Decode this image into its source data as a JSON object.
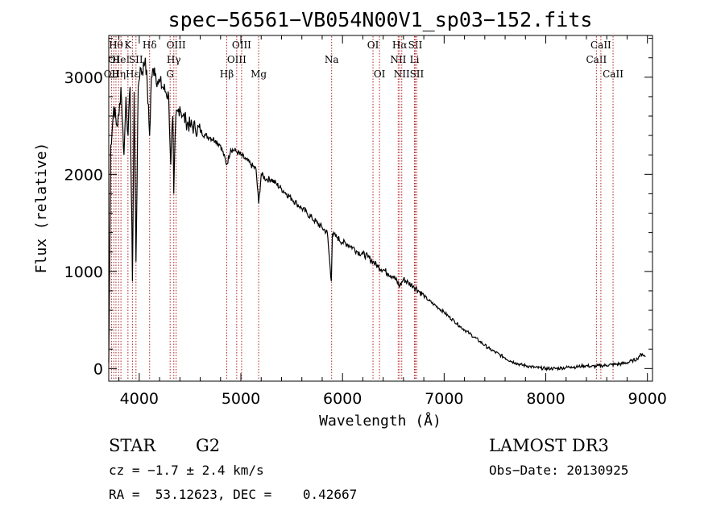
{
  "chart_data": {
    "type": "line",
    "title": "spec−56561−VB054N00V1_sp03−152.fits",
    "xlabel": "Wavelength (Å)",
    "ylabel": "Flux (relative)",
    "xlim": [
      3700,
      9050
    ],
    "ylim": [
      -130,
      3430
    ],
    "xticks": [
      {
        "value": 4000,
        "label": "4000"
      },
      {
        "value": 5000,
        "label": "5000"
      },
      {
        "value": 6000,
        "label": "6000"
      },
      {
        "value": 7000,
        "label": "7000"
      },
      {
        "value": 8000,
        "label": "8000"
      },
      {
        "value": 9000,
        "label": "9000"
      }
    ],
    "yticks": [
      {
        "value": 0,
        "label": "0"
      },
      {
        "value": 1000,
        "label": "1000"
      },
      {
        "value": 2000,
        "label": "2000"
      },
      {
        "value": 3000,
        "label": "3000"
      }
    ],
    "spectrum": {
      "name": "flux",
      "color": "#000000",
      "x": [
        3700,
        3720,
        3750,
        3780,
        3800,
        3820,
        3850,
        3870,
        3890,
        3910,
        3933,
        3950,
        3968,
        3990,
        4010,
        4030,
        4060,
        4080,
        4102,
        4120,
        4150,
        4180,
        4200,
        4230,
        4260,
        4290,
        4310,
        4330,
        4340,
        4360,
        4380,
        4400,
        4430,
        4460,
        4500,
        4550,
        4600,
        4650,
        4700,
        4750,
        4800,
        4861,
        4900,
        4950,
        5000,
        5050,
        5100,
        5150,
        5175,
        5200,
        5250,
        5300,
        5350,
        5400,
        5450,
        5500,
        5550,
        5600,
        5650,
        5700,
        5750,
        5800,
        5850,
        5890,
        5900,
        5950,
        6000,
        6050,
        6100,
        6150,
        6200,
        6250,
        6300,
        6350,
        6400,
        6450,
        6500,
        6563,
        6600,
        6650,
        6700,
        6750,
        6800,
        6850,
        6900,
        6950,
        7000,
        7050,
        7100,
        7150,
        7200,
        7250,
        7300,
        7350,
        7400,
        7450,
        7500,
        7550,
        7600,
        7650,
        7700,
        7750,
        7800,
        7850,
        7900,
        7950,
        8000,
        8050,
        8100,
        8150,
        8200,
        8250,
        8300,
        8350,
        8400,
        8450,
        8500,
        8550,
        8600,
        8650,
        8700,
        8750,
        8800,
        8850,
        8900,
        8920,
        8950,
        8980
      ],
      "values": [
        60,
        2300,
        2700,
        2500,
        2600,
        2900,
        2200,
        2800,
        2400,
        2900,
        900,
        2850,
        1100,
        2900,
        3100,
        3050,
        3200,
        2900,
        2400,
        3000,
        3100,
        2950,
        2950,
        2900,
        2850,
        2800,
        2100,
        2600,
        1800,
        2600,
        2650,
        2700,
        2600,
        2550,
        2500,
        2480,
        2450,
        2400,
        2380,
        2350,
        2300,
        2100,
        2260,
        2240,
        2200,
        2150,
        2100,
        2050,
        1700,
        2000,
        1950,
        1950,
        1900,
        1850,
        1800,
        1750,
        1700,
        1650,
        1600,
        1550,
        1500,
        1450,
        1400,
        900,
        1380,
        1350,
        1300,
        1280,
        1250,
        1200,
        1180,
        1150,
        1100,
        1050,
        1020,
        980,
        950,
        850,
        920,
        880,
        850,
        800,
        750,
        700,
        660,
        620,
        580,
        530,
        490,
        440,
        400,
        360,
        320,
        280,
        240,
        200,
        170,
        140,
        110,
        80,
        60,
        40,
        30,
        20,
        10,
        5,
        0,
        0,
        0,
        5,
        10,
        20,
        15,
        25,
        30,
        20,
        25,
        30,
        35,
        40,
        45,
        50,
        60,
        80,
        100,
        130,
        150,
        120
      ]
    },
    "line_markers": [
      {
        "wavelength": 3727,
        "rows": [
          {
            "label": "OII",
            "row": 2
          }
        ]
      },
      {
        "wavelength": 3750,
        "rows": [
          {
            "label": "OI",
            "row": 1
          }
        ]
      },
      {
        "wavelength": 3771,
        "rows": [
          {
            "label": "Hθ",
            "row": 0
          }
        ]
      },
      {
        "wavelength": 3797,
        "rows": [
          {
            "label": "Hη",
            "row": 2
          }
        ]
      },
      {
        "wavelength": 3820,
        "rows": [
          {
            "label": "HeI",
            "row": 1
          }
        ]
      },
      {
        "wavelength": 3889,
        "rows": [
          {
            "label": "K",
            "row": 0
          }
        ]
      },
      {
        "wavelength": 3933,
        "rows": [
          {
            "label": "Hε",
            "row": 2
          }
        ]
      },
      {
        "wavelength": 3968,
        "rows": [
          {
            "label": "SII",
            "row": 1
          }
        ]
      },
      {
        "wavelength": 4102,
        "rows": [
          {
            "label": "Hδ",
            "row": 0
          }
        ]
      },
      {
        "wavelength": 4304,
        "rows": [
          {
            "label": "G",
            "row": 2
          }
        ]
      },
      {
        "wavelength": 4340,
        "rows": [
          {
            "label": "Hγ",
            "row": 1
          }
        ]
      },
      {
        "wavelength": 4363,
        "rows": [
          {
            "label": "OIII",
            "row": 0
          }
        ]
      },
      {
        "wavelength": 4861,
        "rows": [
          {
            "label": "Hβ",
            "row": 2
          }
        ]
      },
      {
        "wavelength": 4959,
        "rows": [
          {
            "label": "OIII",
            "row": 1
          }
        ]
      },
      {
        "wavelength": 5007,
        "rows": [
          {
            "label": "OIII",
            "row": 0
          }
        ]
      },
      {
        "wavelength": 5175,
        "rows": [
          {
            "label": "Mg",
            "row": 2
          }
        ]
      },
      {
        "wavelength": 5893,
        "rows": [
          {
            "label": "Na",
            "row": 1
          }
        ]
      },
      {
        "wavelength": 6300,
        "rows": [
          {
            "label": "OI",
            "row": 0
          }
        ]
      },
      {
        "wavelength": 6364,
        "rows": [
          {
            "label": "OI",
            "row": 2
          }
        ]
      },
      {
        "wavelength": 6548,
        "rows": [
          {
            "label": "NII",
            "row": 1
          }
        ]
      },
      {
        "wavelength": 6563,
        "rows": [
          {
            "label": "Hα",
            "row": 0
          }
        ]
      },
      {
        "wavelength": 6583,
        "rows": [
          {
            "label": "NII",
            "row": 2
          }
        ]
      },
      {
        "wavelength": 6708,
        "rows": [
          {
            "label": "Li",
            "row": 1
          }
        ]
      },
      {
        "wavelength": 6716,
        "rows": [
          {
            "label": "SII",
            "row": 0
          }
        ]
      },
      {
        "wavelength": 6731,
        "rows": [
          {
            "label": "SII",
            "row": 2
          }
        ]
      },
      {
        "wavelength": 8498,
        "rows": [
          {
            "label": "CaII",
            "row": 1
          }
        ]
      },
      {
        "wavelength": 8542,
        "rows": [
          {
            "label": "CaII",
            "row": 0
          }
        ]
      },
      {
        "wavelength": 8662,
        "rows": [
          {
            "label": "CaII",
            "row": 2
          }
        ]
      }
    ],
    "marker_color": "#b22222"
  },
  "info": {
    "class_label": "STAR",
    "subclass": "G2",
    "survey": "LAMOST DR3",
    "cz": "cz = −1.7 ± 2.4 km/s",
    "obs_date": "Obs−Date: 20130925",
    "coords": "RA =  53.12623, DEC =    0.42667"
  }
}
